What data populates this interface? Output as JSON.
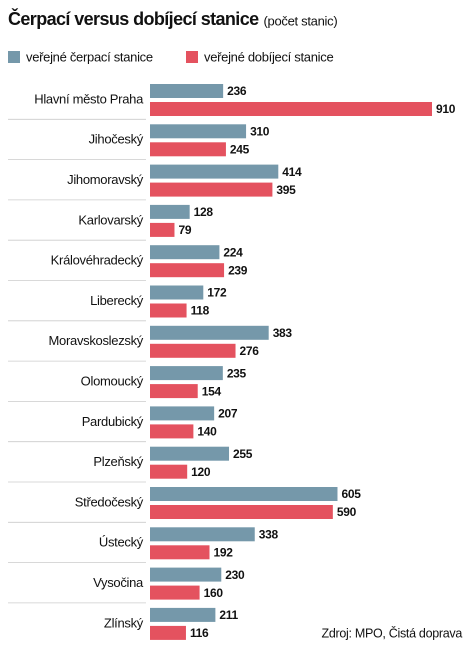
{
  "chart_data": {
    "type": "bar",
    "orientation": "horizontal",
    "title": "Čerpací versus dobíjecí stanice",
    "subtitle": "(počet stanic)",
    "source": "Zdroj: MPO, Čistá doprava",
    "categories": [
      "Hlavní město Praha",
      "Jihočeský",
      "Jihomoravský",
      "Karlovarský",
      "Královéhradecký",
      "Liberecký",
      "Moravskoslezský",
      "Olomoucký",
      "Pardubický",
      "Plzeňský",
      "Středočeský",
      "Ústecký",
      "Vysočina",
      "Zlínský"
    ],
    "series": [
      {
        "name": "veřejné čerpací stanice",
        "color": "#7598aa",
        "values": [
          236,
          310,
          414,
          128,
          224,
          172,
          383,
          235,
          207,
          255,
          605,
          338,
          230,
          211
        ]
      },
      {
        "name": "veřejné dobíjecí stanice",
        "color": "#e4525f",
        "values": [
          910,
          245,
          395,
          79,
          239,
          118,
          276,
          154,
          140,
          120,
          590,
          192,
          160,
          116
        ]
      }
    ]
  }
}
